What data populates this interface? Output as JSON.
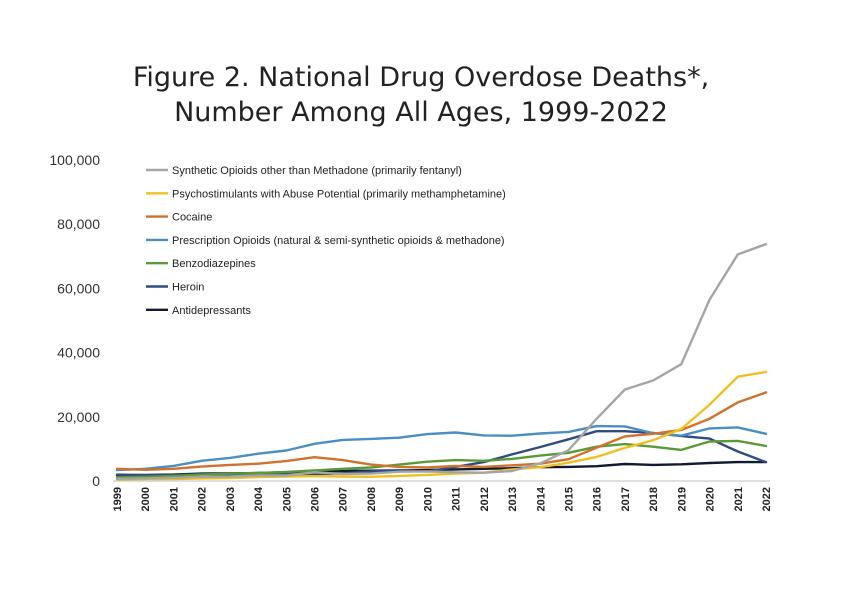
{
  "chart_data": {
    "type": "line",
    "title_line1": "Figure 2. National Drug Overdose Deaths*,",
    "title_line2": "Number Among All Ages, 1999-2022",
    "xlabel": "",
    "ylabel": "",
    "ylim": [
      0,
      100000
    ],
    "yticks": [
      0,
      20000,
      40000,
      60000,
      80000,
      100000
    ],
    "ytick_labels": [
      "0",
      "20,000",
      "40,000",
      "60,000",
      "80,000",
      "100,000"
    ],
    "grid": false,
    "legend_position": "top-left",
    "x": [
      "1999",
      "2000",
      "2001",
      "2002",
      "2003",
      "2004",
      "2005",
      "2006",
      "2007",
      "2008",
      "2009",
      "2010",
      "2011",
      "2012",
      "2013",
      "2014",
      "2015",
      "2016",
      "2017",
      "2018",
      "2019",
      "2020",
      "2021",
      "2022"
    ],
    "series": [
      {
        "name": "Synthetic Opioids other than Methadone (primarily fentanyl)",
        "color": "#a5a5a5",
        "values": [
          700,
          800,
          1000,
          1300,
          1400,
          1700,
          1700,
          2700,
          2200,
          2300,
          2900,
          3000,
          2700,
          2600,
          3100,
          5500,
          9600,
          19400,
          28500,
          31300,
          36400,
          56500,
          70600,
          73800
        ]
      },
      {
        "name": "Psychostimulants with Abuse Potential (primarily methamphetamine)",
        "color": "#f0c020",
        "values": [
          500,
          600,
          600,
          800,
          900,
          1200,
          1400,
          1500,
          1400,
          1300,
          1600,
          1900,
          2300,
          2600,
          3600,
          4300,
          5700,
          7500,
          10300,
          12700,
          16200,
          23800,
          32500,
          34000
        ]
      },
      {
        "name": "Cocaine",
        "color": "#d0722c",
        "values": [
          3800,
          3500,
          3800,
          4500,
          5000,
          5400,
          6200,
          7400,
          6500,
          5100,
          4400,
          4200,
          4700,
          4400,
          4900,
          5400,
          6800,
          10400,
          13900,
          14700,
          15900,
          19400,
          24500,
          27600
        ]
      },
      {
        "name": "Prescription Opioids (natural & semi-synthetic opioids & methadone)",
        "color": "#4a8ec2",
        "values": [
          3400,
          3800,
          4700,
          6300,
          7200,
          8500,
          9500,
          11600,
          12800,
          13100,
          13500,
          14600,
          15100,
          14200,
          14100,
          14800,
          15300,
          17100,
          17000,
          14900,
          14100,
          16400,
          16700,
          14700
        ]
      },
      {
        "name": "Benzodiazepines",
        "color": "#5a9a36",
        "values": [
          1100,
          1300,
          1600,
          2000,
          2300,
          2500,
          2800,
          3300,
          3800,
          4200,
          5100,
          6000,
          6500,
          6300,
          6900,
          7900,
          8800,
          10700,
          11500,
          10700,
          9700,
          12300,
          12500,
          10900
        ]
      },
      {
        "name": "Heroin",
        "color": "#2e4d7e",
        "values": [
          2000,
          1800,
          1800,
          2100,
          2100,
          1900,
          2000,
          2100,
          2400,
          3000,
          3300,
          3000,
          4400,
          5900,
          8300,
          10600,
          13000,
          15500,
          15500,
          15000,
          14000,
          13200,
          9200,
          5900
        ]
      },
      {
        "name": "Antidepressants",
        "color": "#111a2e",
        "values": [
          1800,
          1900,
          2000,
          2300,
          2400,
          2500,
          2700,
          2900,
          3100,
          3200,
          3300,
          3400,
          3600,
          3800,
          4000,
          4300,
          4400,
          4600,
          5300,
          5000,
          5200,
          5600,
          5900,
          5900
        ]
      }
    ]
  }
}
